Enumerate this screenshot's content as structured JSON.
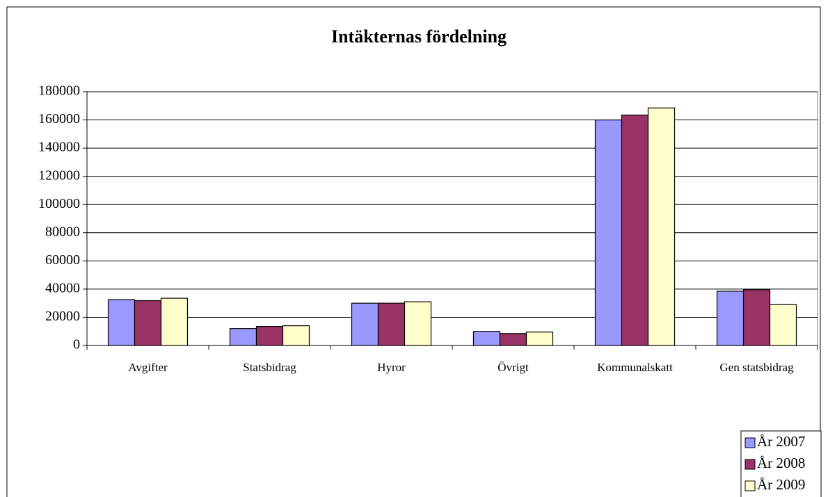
{
  "chart_data": {
    "type": "bar",
    "title": "Intäkternas fördelning",
    "categories": [
      "Avgifter",
      "Statsbidrag",
      "Hyror",
      "Övrigt",
      "Kommunalskatt",
      "Gen statsbidrag"
    ],
    "series": [
      {
        "name": "År 2007",
        "color": "#9999ff",
        "values": [
          32500,
          12000,
          30000,
          10000,
          160000,
          38500
        ]
      },
      {
        "name": "År 2008",
        "color": "#993366",
        "values": [
          31800,
          13500,
          30000,
          8500,
          163500,
          39500
        ]
      },
      {
        "name": "År 2009",
        "color": "#ffffcc",
        "values": [
          33500,
          14000,
          31000,
          9500,
          168500,
          29000
        ]
      }
    ],
    "ylim": [
      0,
      180000
    ],
    "yticks": [
      0,
      20000,
      40000,
      60000,
      80000,
      100000,
      120000,
      140000,
      160000,
      180000
    ],
    "grid": true,
    "legend": "bottom-right"
  }
}
